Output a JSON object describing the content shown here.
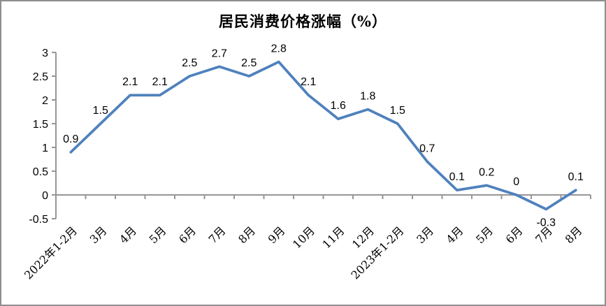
{
  "window": {
    "background_color": "#ffffff",
    "frame_border_color": "#8e8e8e"
  },
  "chart_data": {
    "type": "line",
    "title": "居民消费价格涨幅（%）",
    "categories": [
      "2022年1-2月",
      "3月",
      "4月",
      "5月",
      "6月",
      "7月",
      "8月",
      "9月",
      "10月",
      "11月",
      "12月",
      "2023年1-2月",
      "3月",
      "4月",
      "5月",
      "6月",
      "7月",
      "8月"
    ],
    "series": [
      {
        "name": "居民消费价格涨幅",
        "values": [
          0.9,
          1.5,
          2.1,
          2.1,
          2.5,
          2.7,
          2.5,
          2.8,
          2.1,
          1.6,
          1.8,
          1.5,
          0.7,
          0.1,
          0.2,
          0,
          -0.3,
          0.1
        ]
      }
    ],
    "point_labels": [
      "0.9",
      "1.5",
      "2.1",
      "2.1",
      "2.5",
      "2.7",
      "2.5",
      "2.8",
      "2.1",
      "1.6",
      "1.8",
      "1.5",
      "0.7",
      "0.1",
      "0.2",
      "0",
      "-0.3",
      "0.1"
    ],
    "labels_below_indices": [
      16
    ],
    "xlabel": "",
    "ylabel": "",
    "ylim": [
      -0.5,
      3
    ],
    "y_tick_values": [
      3,
      2.5,
      2,
      1.5,
      1,
      0.5,
      0,
      -0.5
    ],
    "y_tick_labels": [
      "3",
      "2.5",
      "2",
      "1.5",
      "1",
      "0.5",
      "0",
      "-0.5"
    ],
    "grid": false,
    "legend_position": "none",
    "x_axis_crosses_at": 0,
    "x_label_rotation_deg": -45,
    "line_color": "#4f81bd",
    "axis_color": "#969696",
    "label_color": "#000000"
  }
}
